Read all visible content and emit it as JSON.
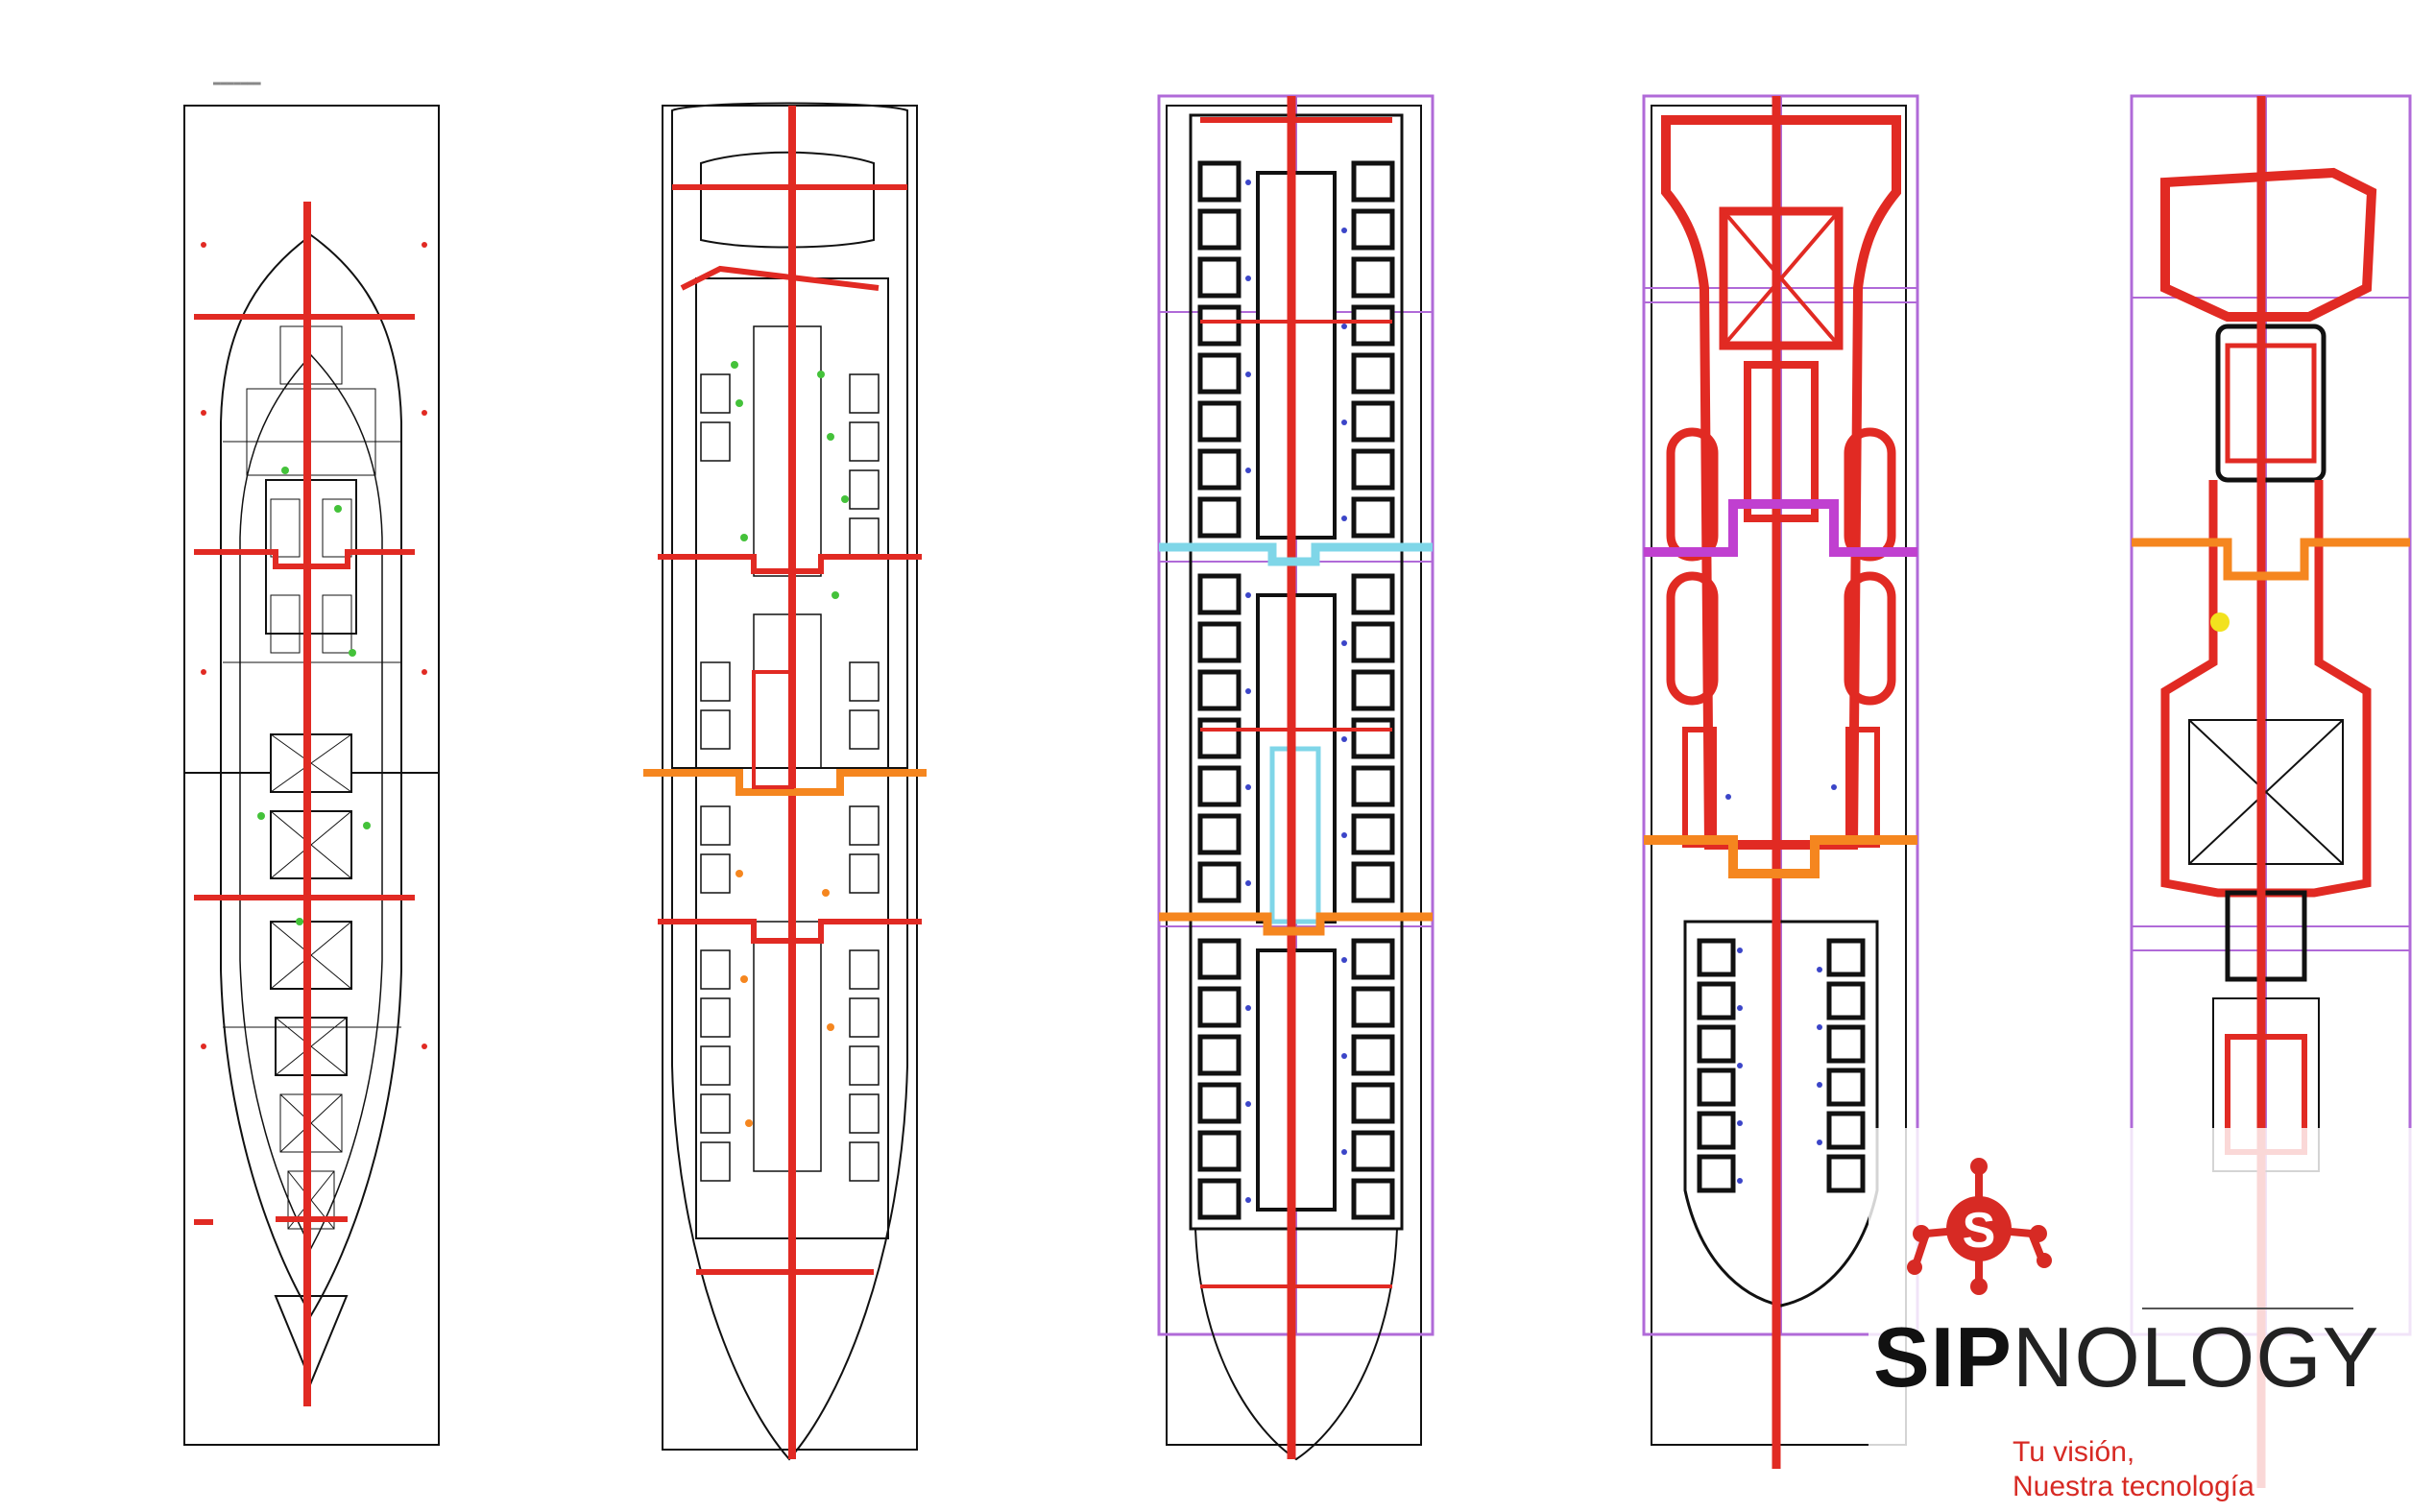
{
  "colors": {
    "outline": "#111111",
    "axis": "#e12a23",
    "zone_orange": "#f5861f",
    "zone_cyan": "#7fd6e8",
    "zone_magenta": "#c040d0",
    "frame_violet": "#b06ad8",
    "equipment_blue": "#3b45c8",
    "equipment_green": "#44c23a",
    "brand_red": "#d72a24"
  },
  "drawings": [
    {
      "name": "deck-plan-1",
      "view": "hull outline"
    },
    {
      "name": "deck-plan-2",
      "view": "cabin arrangement"
    },
    {
      "name": "deck-plan-3",
      "view": "cabin grid"
    },
    {
      "name": "deck-plan-4",
      "view": "lifeboat deck"
    },
    {
      "name": "deck-plan-5",
      "view": "top deck"
    }
  ],
  "brand": {
    "name_strong": "SIP",
    "name_light": "NOLOGY",
    "tagline_line1": "Tu visión,",
    "tagline_line2": "Nuestra tecnología"
  }
}
